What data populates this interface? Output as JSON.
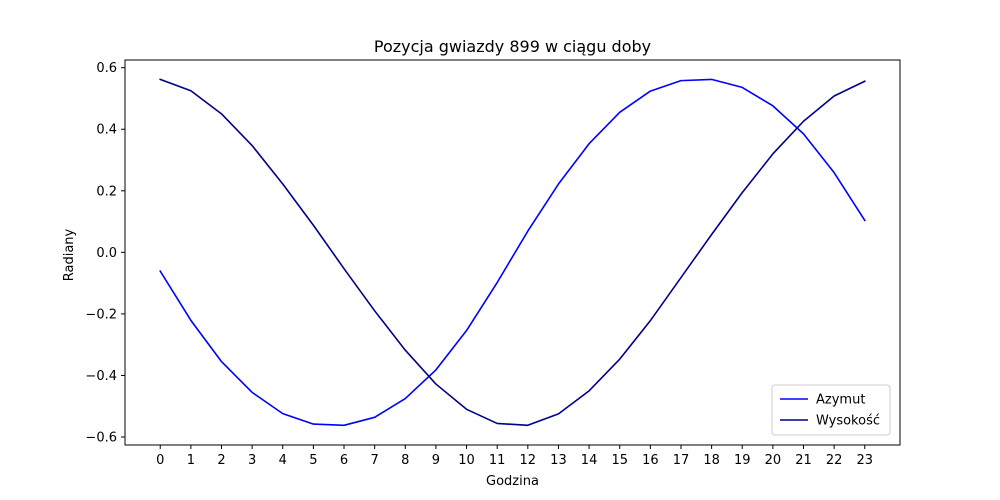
{
  "chart_data": {
    "type": "line",
    "title": "Pozycja gwiazdy 899 w ciągu doby",
    "xlabel": "Godzina",
    "ylabel": "Radiany",
    "x": [
      0,
      1,
      2,
      3,
      4,
      5,
      6,
      7,
      8,
      9,
      10,
      11,
      12,
      13,
      14,
      15,
      16,
      17,
      18,
      19,
      20,
      21,
      22,
      23
    ],
    "xlim": [
      -1.15,
      24.15
    ],
    "ylim": [
      -0.626,
      0.625
    ],
    "yticks": [
      -0.6,
      -0.4,
      -0.2,
      0.0,
      0.2,
      0.4,
      0.6
    ],
    "ytick_labels": [
      "−0.6",
      "−0.4",
      "−0.2",
      "0.0",
      "0.2",
      "0.4",
      "0.6"
    ],
    "grid": false,
    "legend": "lower-right",
    "series": [
      {
        "name": "Azymut",
        "color": "#0000ff",
        "values": [
          -0.061,
          -0.221,
          -0.355,
          -0.455,
          -0.524,
          -0.558,
          -0.562,
          -0.536,
          -0.475,
          -0.382,
          -0.254,
          -0.098,
          0.069,
          0.222,
          0.353,
          0.455,
          0.524,
          0.558,
          0.562,
          0.536,
          0.476,
          0.385,
          0.259,
          0.104
        ]
      },
      {
        "name": "Wysokość",
        "color": "#00008b",
        "values": [
          0.562,
          0.525,
          0.45,
          0.347,
          0.222,
          0.088,
          -0.053,
          -0.19,
          -0.318,
          -0.428,
          -0.51,
          -0.556,
          -0.562,
          -0.525,
          -0.45,
          -0.347,
          -0.222,
          -0.082,
          0.058,
          0.194,
          0.32,
          0.426,
          0.508,
          0.556
        ]
      }
    ]
  }
}
